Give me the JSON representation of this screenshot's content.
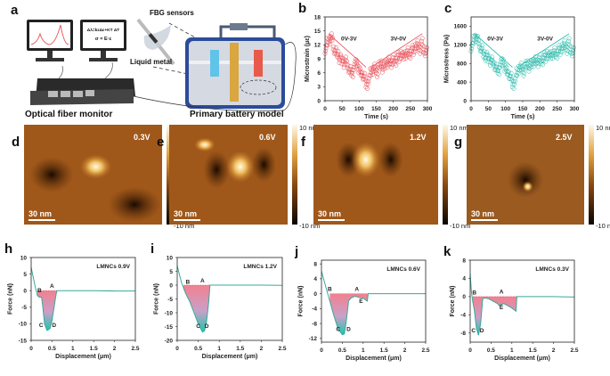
{
  "panel_a": {
    "label": "a",
    "equation_1": "Δλ=kεΔε+KT ΔT",
    "equation_2": "σ = E·ε",
    "fbg_label": "FBG sensors",
    "liquid_metal_label": "Liquid metal",
    "monitor_caption": "Optical fiber monitor",
    "battery_caption": "Primary battery model"
  },
  "afm": [
    {
      "label": "d",
      "voltage": "0.3V",
      "scale_bar": "30 nm",
      "cb_max": "10 nm",
      "cb_min": "-10 nm"
    },
    {
      "label": "e",
      "voltage": "0.6V",
      "scale_bar": "30 nm",
      "cb_max": "10 nm",
      "cb_min": "-10 nm"
    },
    {
      "label": "f",
      "voltage": "1.2V",
      "scale_bar": "30 nm",
      "cb_max": "10 nm",
      "cb_min": "-10 nm"
    },
    {
      "label": "g",
      "voltage": "2.5V",
      "scale_bar": "30 nm",
      "cb_max": "10 nm",
      "cb_min": "-10 nm"
    }
  ],
  "chart_data": [
    {
      "label": "b",
      "type": "scatter",
      "xlabel": "Time (s)",
      "ylabel": "Microstrain (με)",
      "xlim": [
        0,
        300
      ],
      "ylim": [
        0,
        18
      ],
      "xticks": [
        0,
        50,
        100,
        150,
        200,
        250,
        300
      ],
      "yticks": [
        0,
        3,
        6,
        9,
        12,
        15,
        18
      ],
      "color": "#e8464f",
      "annotations": [
        "0V-3V",
        "3V-0V"
      ],
      "x": [
        2,
        8,
        14,
        20,
        26,
        32,
        38,
        44,
        50,
        56,
        62,
        68,
        74,
        80,
        86,
        92,
        98,
        104,
        110,
        116,
        122,
        128,
        134,
        140,
        146,
        152,
        158,
        164,
        170,
        176,
        182,
        188,
        194,
        200,
        206,
        212,
        218,
        224,
        230,
        236,
        242,
        248,
        254,
        260,
        266,
        272,
        278,
        284,
        290,
        296
      ],
      "y": [
        11,
        12.5,
        13,
        13.5,
        11,
        10.5,
        10,
        9,
        8.5,
        8,
        8.5,
        7,
        6.5,
        6,
        7.5,
        8,
        7,
        6,
        5.5,
        5,
        3.5,
        4.5,
        6,
        6.5,
        7,
        6,
        7.5,
        8,
        7,
        7.5,
        8,
        8.5,
        8,
        9,
        8.5,
        9.5,
        9,
        10,
        9.5,
        10,
        10.5,
        10,
        11,
        10.5,
        11.5,
        12,
        11,
        12.5,
        11,
        10.5
      ]
    },
    {
      "label": "c",
      "type": "scatter",
      "xlabel": "Time (s)",
      "ylabel": "Microstress (Pa)",
      "xlim": [
        0,
        300
      ],
      "ylim": [
        0,
        1800
      ],
      "xticks": [
        0,
        50,
        100,
        150,
        200,
        250,
        300
      ],
      "yticks": [
        0,
        400,
        800,
        1200,
        1600
      ],
      "color": "#22b8a8",
      "annotations": [
        "0V-3V",
        "3V-0V"
      ],
      "x": [
        2,
        8,
        14,
        20,
        26,
        32,
        38,
        44,
        50,
        56,
        62,
        68,
        74,
        80,
        86,
        92,
        98,
        104,
        110,
        116,
        122,
        128,
        134,
        140,
        146,
        152,
        158,
        164,
        170,
        176,
        182,
        188,
        194,
        200,
        206,
        212,
        218,
        224,
        230,
        236,
        242,
        248,
        254,
        260,
        266,
        272,
        278,
        284,
        290,
        296
      ],
      "y": [
        1150,
        1300,
        1350,
        1300,
        1150,
        1100,
        1000,
        950,
        900,
        850,
        850,
        750,
        700,
        650,
        800,
        820,
        720,
        620,
        560,
        500,
        350,
        450,
        600,
        680,
        720,
        620,
        760,
        800,
        720,
        780,
        820,
        860,
        820,
        900,
        860,
        950,
        900,
        1000,
        960,
        1000,
        1050,
        1000,
        1100,
        1050,
        1150,
        1200,
        1100,
        1250,
        1100,
        1050
      ]
    },
    {
      "label": "h",
      "type": "line",
      "legend": "LMNCs  0.9V",
      "xlabel": "Displacement (μm)",
      "ylabel": "Force (nN)",
      "xlim": [
        0,
        2.5
      ],
      "ylim": [
        -15,
        10
      ],
      "xticks": [
        0,
        0.5,
        1.0,
        1.5,
        2.0,
        2.5
      ],
      "yticks": [
        10,
        5,
        0,
        -5,
        -10,
        -15
      ],
      "x": [
        0,
        0.05,
        0.1,
        0.15,
        0.2,
        0.25,
        0.28,
        0.32,
        0.38,
        0.45,
        0.5,
        0.55,
        0.6,
        0.62,
        1.0,
        1.5,
        2.0,
        2.5
      ],
      "y": [
        7,
        4,
        1,
        -1.5,
        -2,
        -2,
        -5,
        -10,
        -12,
        -11.5,
        -9,
        -5,
        -1,
        0,
        0,
        0,
        -0.1,
        -0.1
      ],
      "points": [
        {
          "name": "A",
          "x": 0.5,
          "y": 0.8
        },
        {
          "name": "B",
          "x": 0.2,
          "y": -0.5
        },
        {
          "name": "C",
          "x": 0.24,
          "y": -11
        },
        {
          "name": "D",
          "x": 0.55,
          "y": -11
        }
      ]
    },
    {
      "label": "i",
      "type": "line",
      "legend": "LMNCs  1.2V",
      "xlabel": "Displacement (μm)",
      "ylabel": "Force (nN)",
      "xlim": [
        0,
        2.5
      ],
      "ylim": [
        -20,
        10
      ],
      "xticks": [
        0,
        0.5,
        1.0,
        1.5,
        2.0,
        2.5
      ],
      "yticks": [
        10,
        5,
        0,
        -5,
        -10,
        -15,
        -20
      ],
      "x": [
        0,
        0.05,
        0.1,
        0.15,
        0.2,
        0.3,
        0.4,
        0.5,
        0.6,
        0.65,
        0.7,
        0.75,
        0.78,
        1.0,
        1.5,
        2.0,
        2.5
      ],
      "y": [
        7,
        4,
        1,
        -1,
        -3,
        -6,
        -10,
        -14,
        -17,
        -16.5,
        -13,
        -6,
        0,
        0,
        0,
        0,
        -0.1
      ],
      "points": [
        {
          "name": "A",
          "x": 0.6,
          "y": 1
        },
        {
          "name": "B",
          "x": 0.25,
          "y": 0.5
        },
        {
          "name": "C",
          "x": 0.5,
          "y": -15.5
        },
        {
          "name": "D",
          "x": 0.7,
          "y": -15.5
        }
      ]
    },
    {
      "label": "j",
      "type": "line",
      "legend": "LMNCs  0.6V",
      "xlabel": "Displacement (μm)",
      "ylabel": "Force (nN)",
      "xlim": [
        0,
        2.5
      ],
      "ylim": [
        -13,
        9
      ],
      "xticks": [
        0,
        0.5,
        1.0,
        1.5,
        2.0,
        2.5
      ],
      "yticks": [
        8,
        4,
        0,
        -4,
        -8,
        -12
      ],
      "x": [
        0,
        0.05,
        0.1,
        0.15,
        0.2,
        0.3,
        0.4,
        0.5,
        0.55,
        0.6,
        0.65,
        0.7,
        0.8,
        0.9,
        1.0,
        1.1,
        1.12,
        1.5,
        2.0,
        2.5
      ],
      "y": [
        6,
        4,
        2,
        0,
        -2,
        -6,
        -9.5,
        -11,
        -10.8,
        -7,
        -2,
        -1.2,
        -0.7,
        -1,
        -1.2,
        -2,
        0,
        0,
        0,
        0
      ],
      "points": [
        {
          "name": "A",
          "x": 0.85,
          "y": 0.8
        },
        {
          "name": "B",
          "x": 0.2,
          "y": 0.8
        },
        {
          "name": "C",
          "x": 0.4,
          "y": -10
        },
        {
          "name": "D",
          "x": 0.65,
          "y": -10
        },
        {
          "name": "E",
          "x": 0.95,
          "y": -2.5
        }
      ]
    },
    {
      "label": "k",
      "type": "line",
      "legend": "LMNCs  0.3V",
      "xlabel": "Displacement (μm)",
      "ylabel": "Force (nN)",
      "xlim": [
        0,
        2.5
      ],
      "ylim": [
        -10,
        8
      ],
      "xticks": [
        0,
        0.5,
        1.0,
        1.5,
        2.0,
        2.5
      ],
      "yticks": [
        8,
        4,
        0,
        -4,
        -8
      ],
      "x": [
        0,
        0.03,
        0.06,
        0.1,
        0.15,
        0.2,
        0.25,
        0.3,
        0.35,
        0.45,
        0.55,
        0.65,
        0.7,
        0.8,
        0.9,
        1.0,
        1.1,
        1.12,
        1.5,
        2.0,
        2.5
      ],
      "y": [
        5,
        1,
        -1,
        -3,
        -7,
        -8.5,
        -6,
        -0.5,
        -0.3,
        -0.5,
        -1,
        -1.5,
        -2,
        -1.5,
        -2,
        -2.5,
        -3.2,
        0,
        0,
        0,
        -0.1
      ],
      "points": [
        {
          "name": "A",
          "x": 0.75,
          "y": 0.7
        },
        {
          "name": "B",
          "x": 0.1,
          "y": 0.5
        },
        {
          "name": "C",
          "x": 0.08,
          "y": -7.8
        },
        {
          "name": "D",
          "x": 0.28,
          "y": -7.8
        },
        {
          "name": "E",
          "x": 0.75,
          "y": -2.8
        }
      ]
    }
  ]
}
